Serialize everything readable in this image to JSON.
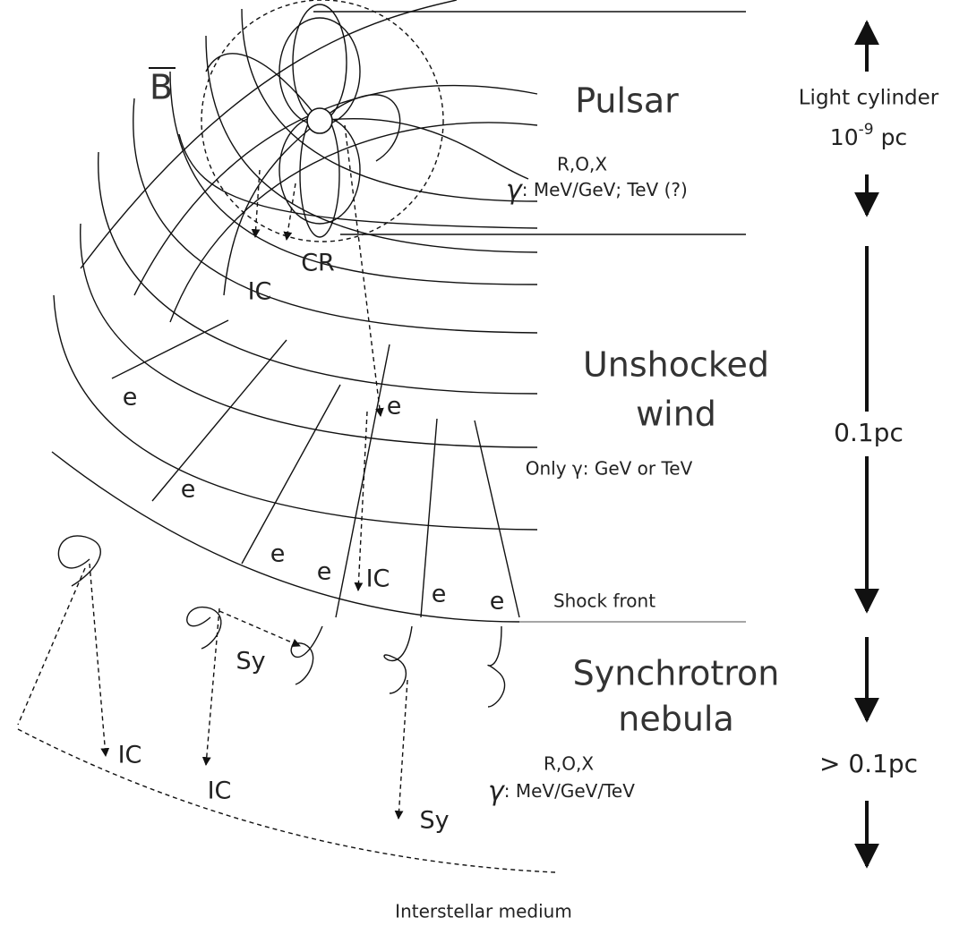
{
  "field_label": "B",
  "regions": [
    {
      "lines": [
        "Pulsar"
      ]
    },
    {
      "lines": [
        "Unshocked",
        "wind"
      ]
    },
    {
      "lines": [
        "Synchrotron",
        "nebula"
      ]
    }
  ],
  "emission": [
    {
      "bands": "R,O,X",
      "gamma_symbol": "γ",
      "gamma": ": MeV/GeV; TeV (?)"
    },
    {
      "text": "Only γ: GeV or TeV"
    },
    {
      "bands": "R,O,X",
      "gamma_symbol": "γ",
      "gamma": ": MeV/GeV/TeV"
    }
  ],
  "processes": [
    "IC",
    "CR",
    "e",
    "e",
    "e",
    "e",
    "e",
    "e",
    "e",
    "IC",
    "Sy",
    "IC",
    "IC",
    "Sy"
  ],
  "shock_front": "Shock front",
  "interstellar": "Interstellar medium",
  "scales": [
    {
      "title": "Light cylinder",
      "value": "10",
      "exponent": "-9",
      "unit": "pc"
    },
    {
      "label": "0.1pc"
    },
    {
      "label": "> 0.1pc"
    }
  ]
}
